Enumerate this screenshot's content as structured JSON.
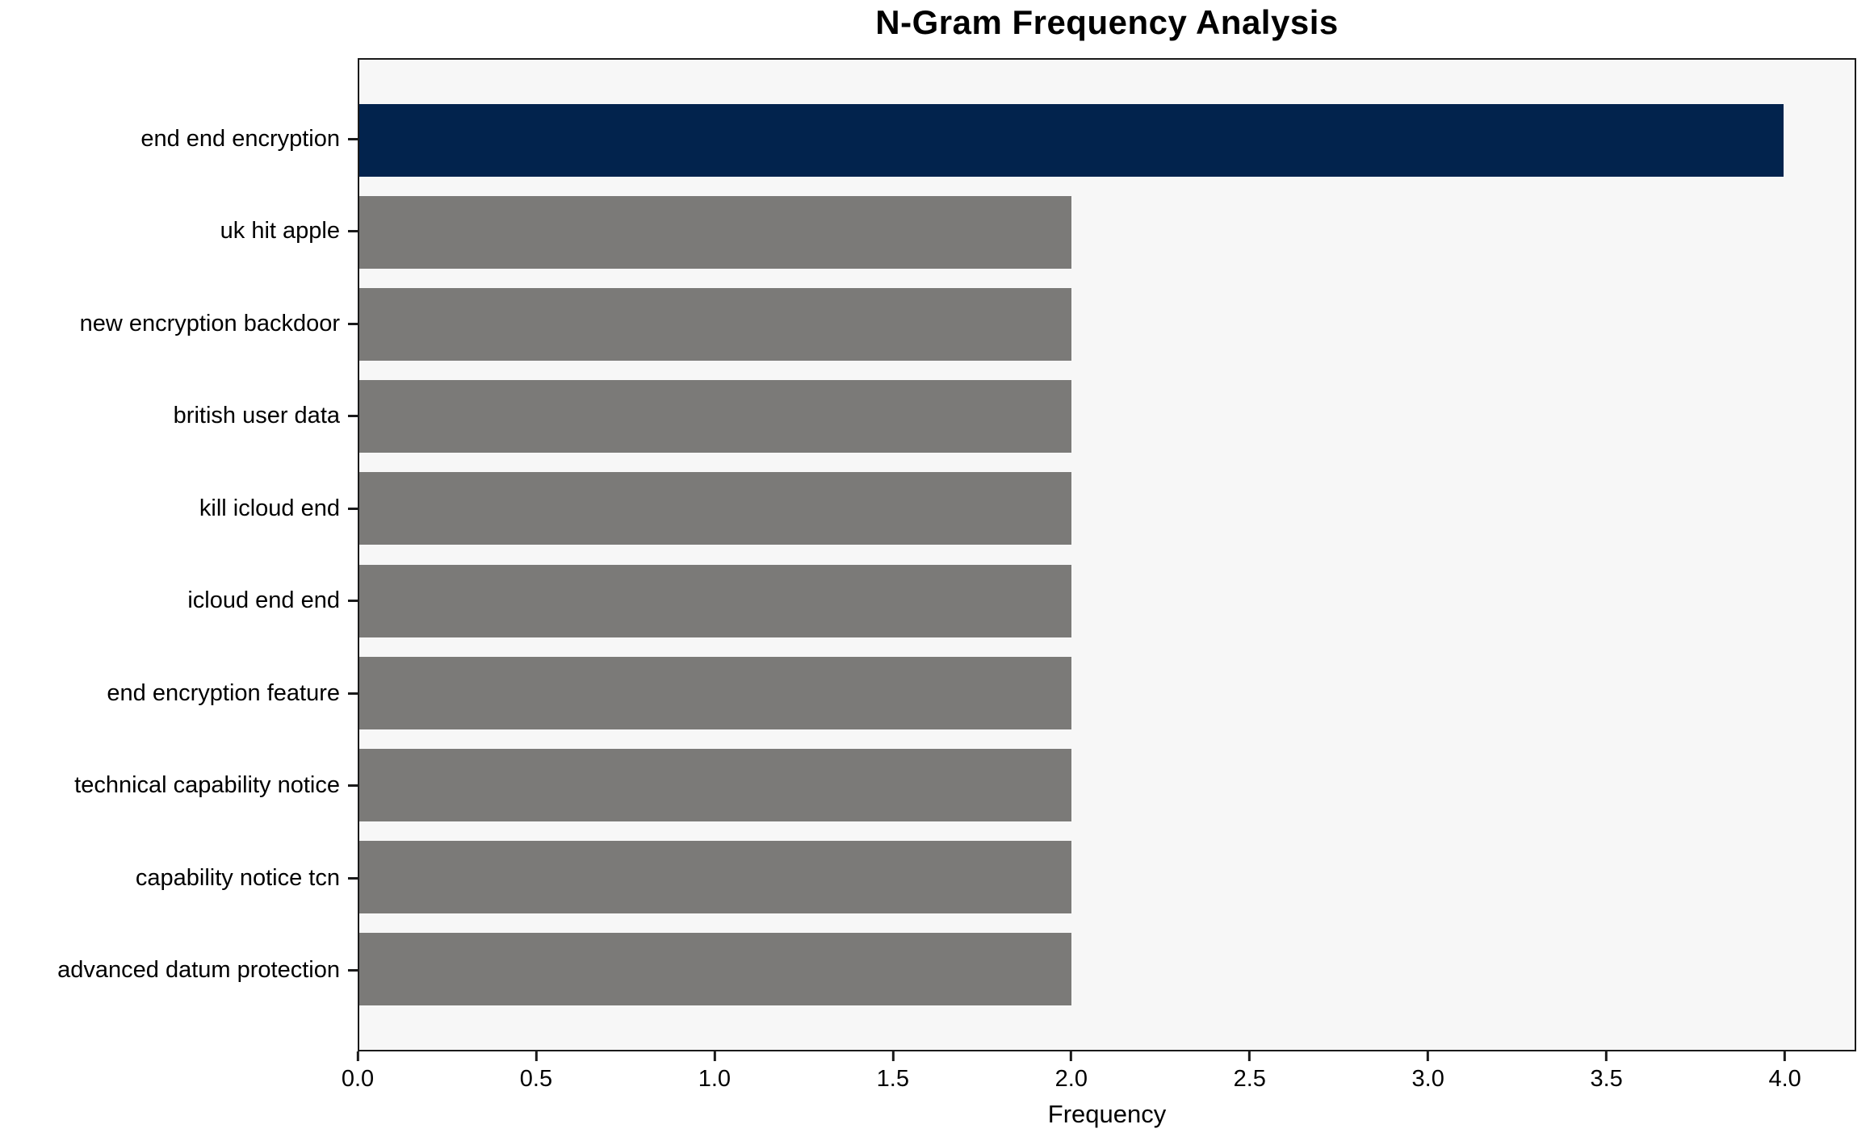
{
  "chart_data": {
    "type": "bar",
    "orientation": "horizontal",
    "title": "N-Gram Frequency Analysis",
    "xlabel": "Frequency",
    "ylabel": "",
    "categories": [
      "end end encryption",
      "uk hit apple",
      "new encryption backdoor",
      "british user data",
      "kill icloud end",
      "icloud end end",
      "end encryption feature",
      "technical capability notice",
      "capability notice tcn",
      "advanced datum protection"
    ],
    "values": [
      4,
      2,
      2,
      2,
      2,
      2,
      2,
      2,
      2,
      2
    ],
    "bar_colors": [
      "#02234d",
      "#7b7a78",
      "#7b7a78",
      "#7b7a78",
      "#7b7a78",
      "#7b7a78",
      "#7b7a78",
      "#7b7a78",
      "#7b7a78",
      "#7b7a78"
    ],
    "xlim": [
      0,
      4.2
    ],
    "xtick_values": [
      0,
      0.5,
      1,
      1.5,
      2,
      2.5,
      3,
      3.5,
      4
    ],
    "xtick_labels": [
      "0.0",
      "0.5",
      "1.0",
      "1.5",
      "2.0",
      "2.5",
      "3.0",
      "3.5",
      "4.0"
    ],
    "grid": false,
    "legend_position": "none",
    "plot_background": "#f7f7f7",
    "figure_background": "#ffffff",
    "axis_color": "#1a1a1a",
    "highlight_color": "#02234d",
    "default_bar_color": "#7b7a78"
  }
}
